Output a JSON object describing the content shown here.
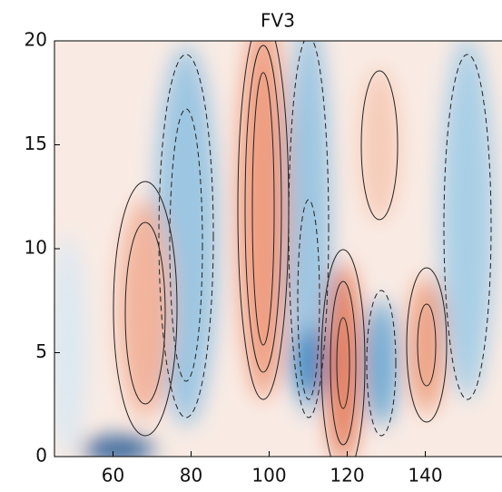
{
  "chart_data": {
    "type": "contour",
    "title": "FV3",
    "xlim": [
      45,
      160
    ],
    "xticks": [
      60,
      80,
      100,
      120,
      140
    ],
    "ylim": [
      0,
      20
    ],
    "yticks": [
      0,
      5,
      10,
      15,
      20
    ]
  }
}
